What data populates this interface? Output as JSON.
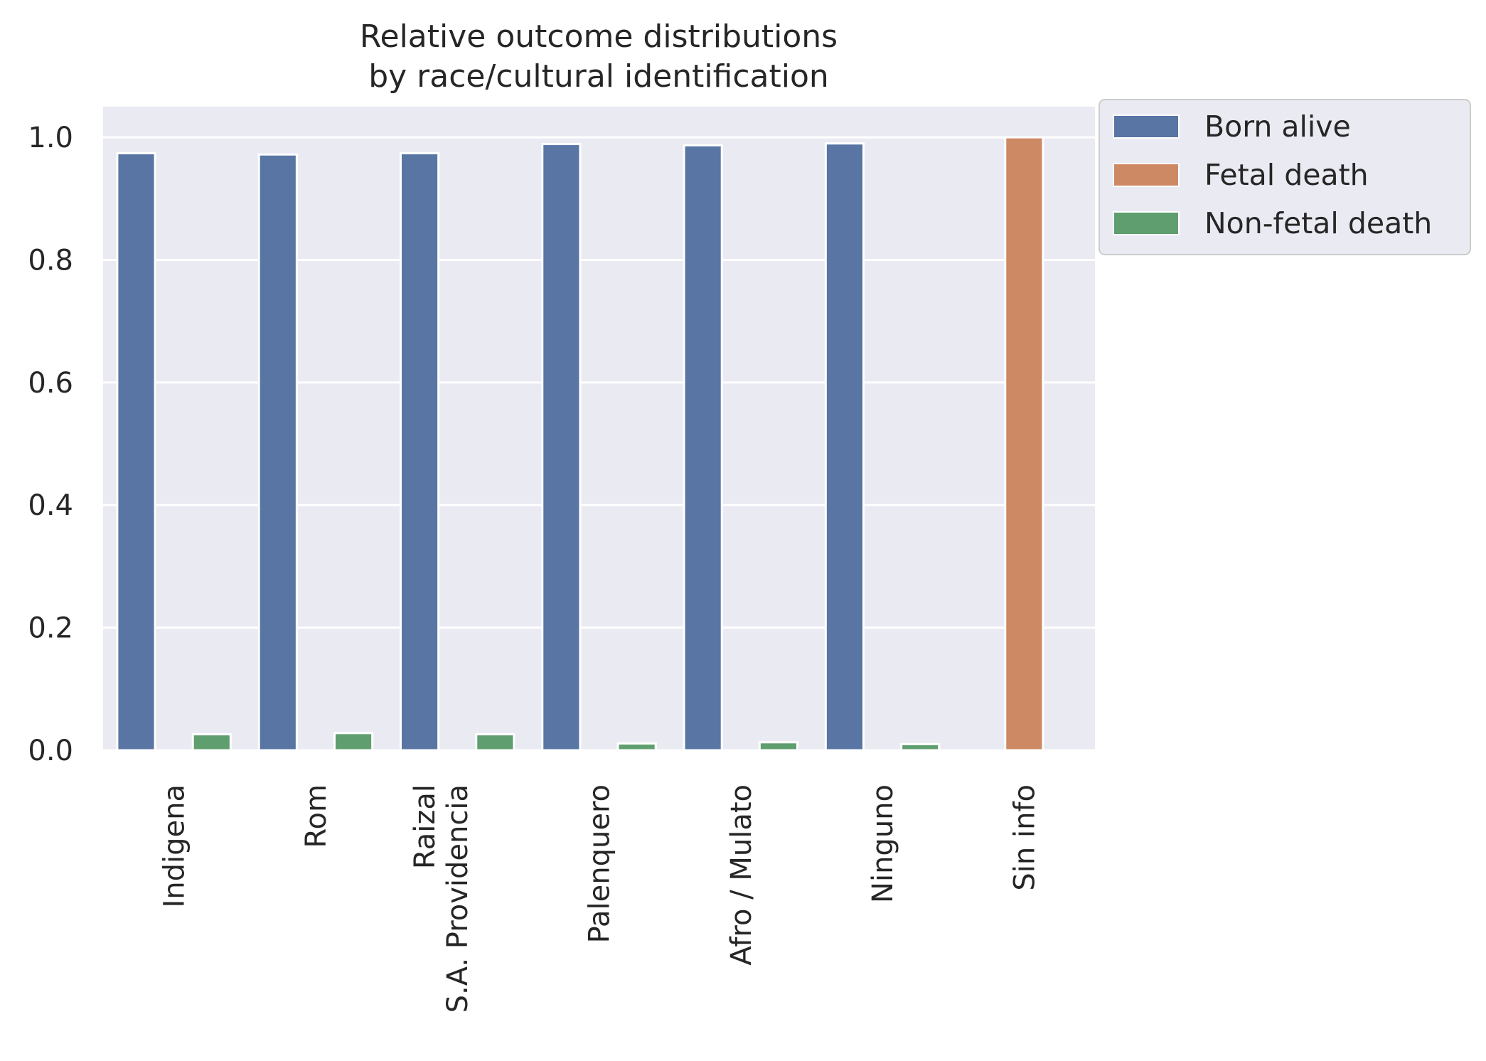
{
  "chart_data": {
    "type": "bar",
    "title": [
      "Relative outcome distributions",
      "by race/cultural identification"
    ],
    "xlabel": "",
    "ylabel": "",
    "categories": [
      [
        "Indigena"
      ],
      [
        "Rom"
      ],
      [
        "Raizal",
        "S.A. Providencia"
      ],
      [
        "Palenquero"
      ],
      [
        "Afro / Mulato"
      ],
      [
        "Ninguno"
      ],
      [
        "Sin info"
      ]
    ],
    "series": [
      {
        "name": "Born alive",
        "color": "#5875a4",
        "values": [
          0.974,
          0.972,
          0.974,
          0.989,
          0.987,
          0.99,
          0.0
        ]
      },
      {
        "name": "Fetal death",
        "color": "#cc8963",
        "values": [
          0.0,
          0.0,
          0.0,
          0.0,
          0.0,
          0.0,
          1.0
        ]
      },
      {
        "name": "Non-fetal death",
        "color": "#5f9e6e",
        "values": [
          0.026,
          0.028,
          0.026,
          0.011,
          0.013,
          0.01,
          0.0
        ]
      }
    ],
    "ylim": [
      0,
      1.05
    ],
    "yticks": [
      "0.0",
      "0.2",
      "0.4",
      "0.6",
      "0.8",
      "1.0"
    ],
    "grid": true,
    "legend_position": "outside-top-right",
    "background": "#eaeaf2"
  }
}
